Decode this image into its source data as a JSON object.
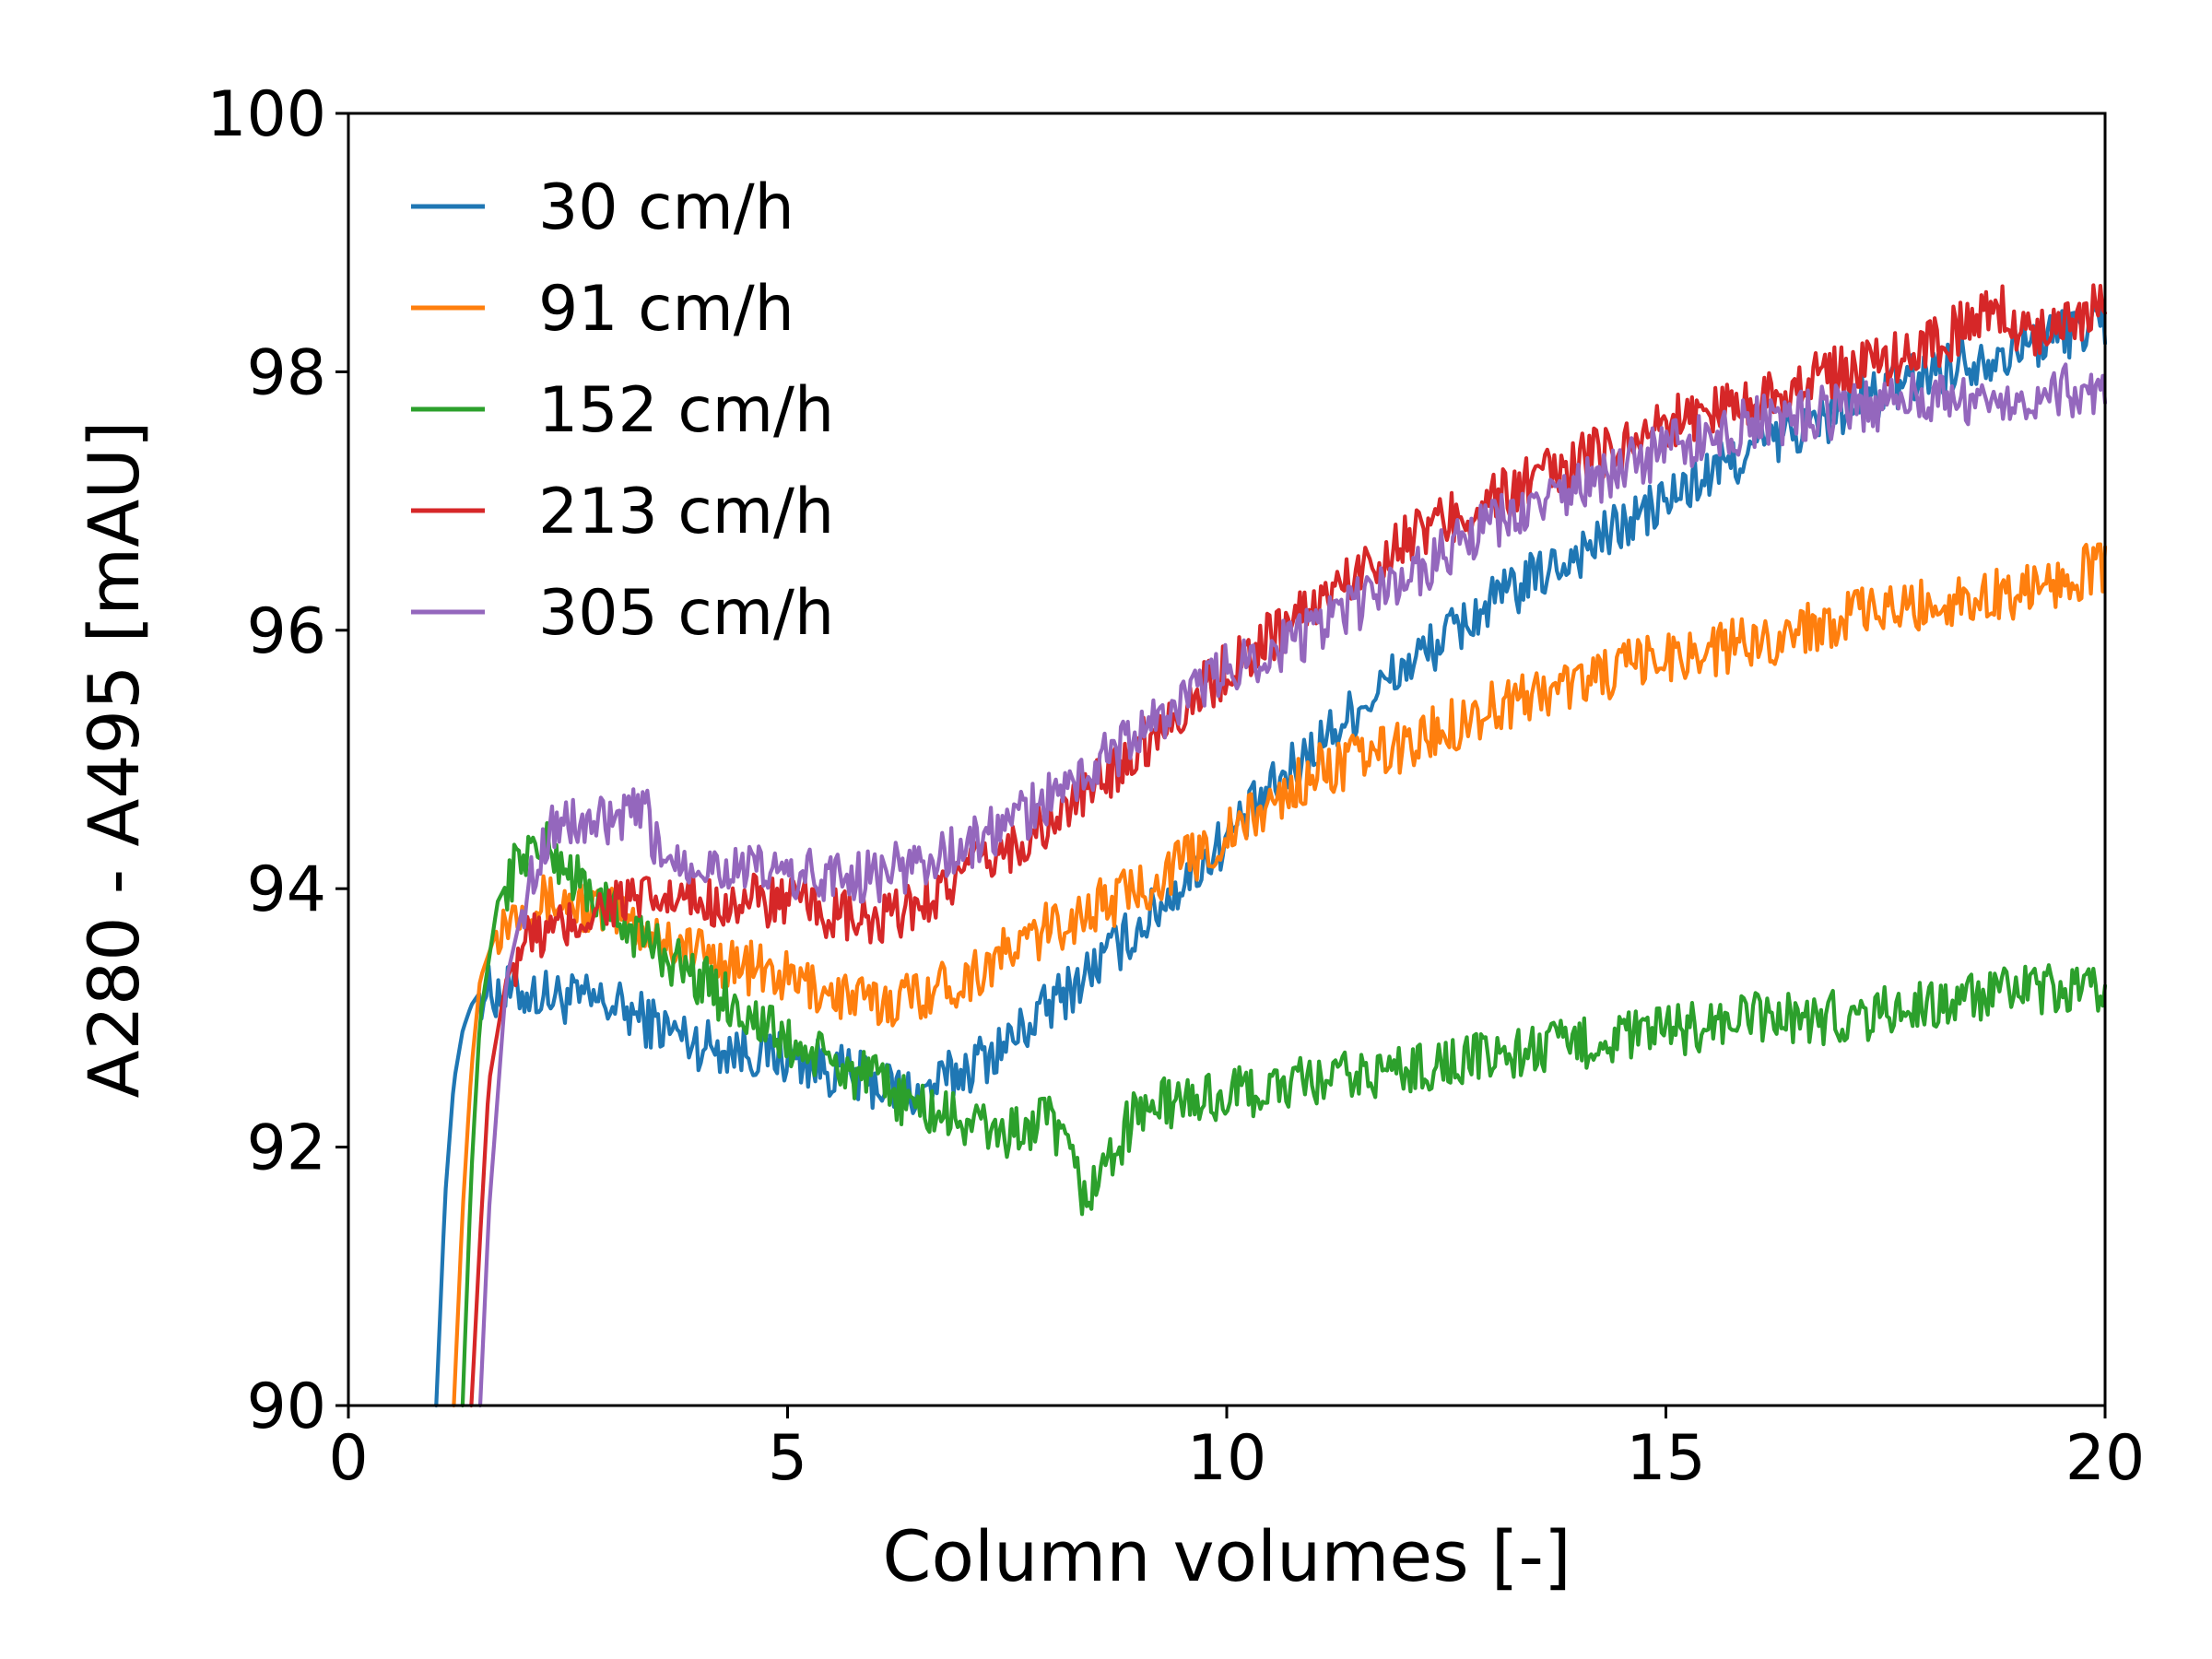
{
  "chart_data": {
    "type": "line",
    "xlabel": "Column volumes [-]",
    "ylabel": "A280 - A495 [mAU]",
    "xlim": [
      0,
      20
    ],
    "ylim": [
      90,
      100
    ],
    "xticks": [
      0,
      5,
      10,
      15,
      20
    ],
    "yticks": [
      90,
      92,
      94,
      96,
      98,
      100
    ],
    "grid": false,
    "legend_position": "upper-left",
    "series": [
      {
        "name": "30 cm/h",
        "color": "#1f77b4",
        "x": [
          1.0,
          1.1,
          1.2,
          1.3,
          1.4,
          1.5,
          2.0,
          3.0,
          4.0,
          5.0,
          6.0,
          6.5,
          7.0,
          7.5,
          8.0,
          9.0,
          10.0,
          11.0,
          12.0,
          13.0,
          14.0,
          15.0,
          16.0,
          17.0,
          18.0,
          19.0,
          19.5,
          20.0
        ],
        "y": [
          90.0,
          91.6,
          92.5,
          92.9,
          93.1,
          93.2,
          93.2,
          93.1,
          92.8,
          92.7,
          92.5,
          92.4,
          92.6,
          92.8,
          93.1,
          93.7,
          94.4,
          95.1,
          95.7,
          96.2,
          96.6,
          97.0,
          97.4,
          97.7,
          98.0,
          98.2,
          98.3,
          98.4
        ]
      },
      {
        "name": "91 cm/h",
        "color": "#ff7f0e",
        "x": [
          1.2,
          1.3,
          1.4,
          1.5,
          1.7,
          2.0,
          2.5,
          3.0,
          4.0,
          5.0,
          6.0,
          7.0,
          8.0,
          9.0,
          10.0,
          11.0,
          12.0,
          13.0,
          14.0,
          15.0,
          16.0,
          17.0,
          18.0,
          19.0,
          20.0
        ],
        "y": [
          90.0,
          91.5,
          92.6,
          93.3,
          93.7,
          93.9,
          93.9,
          93.8,
          93.5,
          93.3,
          93.1,
          93.3,
          93.7,
          94.0,
          94.4,
          94.9,
          95.1,
          95.4,
          95.6,
          95.8,
          95.9,
          96.1,
          96.2,
          96.3,
          96.5
        ]
      },
      {
        "name": "152 cm/h",
        "color": "#2ca02c",
        "x": [
          1.3,
          1.4,
          1.5,
          1.7,
          2.0,
          2.3,
          2.7,
          3.0,
          4.0,
          5.0,
          6.0,
          6.5,
          7.0,
          7.5,
          8.0,
          8.4,
          9.0,
          10.0,
          11.0,
          12.0,
          13.0,
          14.0,
          15.0,
          16.0,
          17.0,
          18.0,
          19.0,
          20.0
        ],
        "y": [
          90.0,
          91.8,
          93.0,
          93.9,
          94.3,
          94.3,
          94.0,
          93.8,
          93.3,
          92.8,
          92.5,
          92.3,
          92.2,
          92.1,
          92.2,
          91.6,
          92.3,
          92.4,
          92.5,
          92.6,
          92.7,
          92.8,
          92.9,
          93.0,
          93.0,
          93.1,
          93.2,
          93.2
        ]
      },
      {
        "name": "213 cm/h",
        "color": "#d62728",
        "x": [
          1.4,
          1.5,
          1.6,
          1.8,
          2.0,
          2.5,
          3.0,
          4.0,
          5.0,
          6.0,
          6.5,
          7.0,
          8.0,
          9.0,
          10.0,
          11.0,
          12.0,
          13.0,
          14.0,
          15.0,
          16.0,
          17.0,
          18.0,
          18.8,
          19.0,
          20.0
        ],
        "y": [
          90.0,
          91.3,
          92.5,
          93.3,
          93.6,
          93.7,
          93.9,
          93.9,
          93.9,
          93.7,
          93.9,
          94.1,
          94.5,
          95.1,
          95.7,
          96.2,
          96.7,
          97.0,
          97.3,
          97.6,
          97.8,
          98.0,
          98.2,
          98.5,
          98.3,
          98.5
        ]
      },
      {
        "name": "305 cm/h",
        "color": "#9467bd",
        "x": [
          1.5,
          1.6,
          1.8,
          2.0,
          2.3,
          2.7,
          3.0,
          3.4,
          3.5,
          4.0,
          5.0,
          6.0,
          7.0,
          8.0,
          9.0,
          10.0,
          11.0,
          12.0,
          13.0,
          14.0,
          15.0,
          16.0,
          17.0,
          18.0,
          19.0,
          20.0
        ],
        "y": [
          90.0,
          91.5,
          93.3,
          93.9,
          94.5,
          94.5,
          94.5,
          94.6,
          94.3,
          94.2,
          94.1,
          94.1,
          94.3,
          94.7,
          95.2,
          95.7,
          96.0,
          96.4,
          96.8,
          97.1,
          97.4,
          97.6,
          97.7,
          97.8,
          97.8,
          97.9
        ]
      }
    ]
  }
}
